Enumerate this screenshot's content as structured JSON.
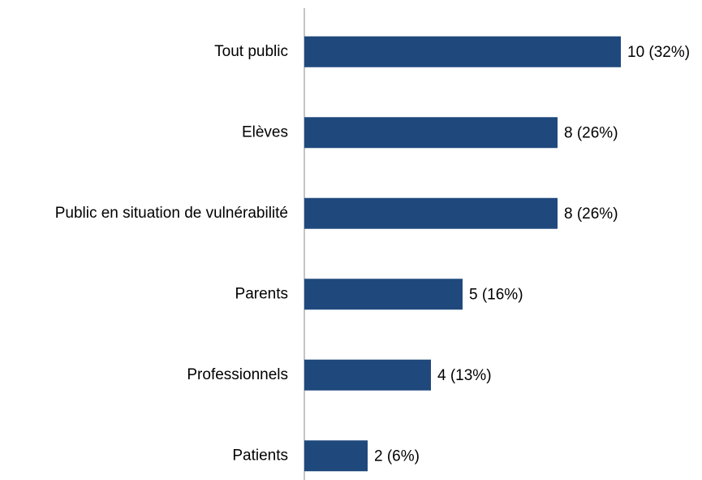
{
  "chart_data": {
    "type": "barh",
    "categories": [
      "Tout public",
      "Elèves",
      "Public en situation de vulnérabilité",
      "Parents",
      "Professionnels",
      "Patients"
    ],
    "values": [
      10,
      8,
      8,
      5,
      4,
      2
    ],
    "value_labels": [
      "10 (32%)",
      "8 (26%)",
      "8 (26%)",
      "5 (16%)",
      "4 (13%)",
      "2 (6%)"
    ],
    "color": "#1f497d",
    "xlim": [
      0,
      10
    ]
  }
}
